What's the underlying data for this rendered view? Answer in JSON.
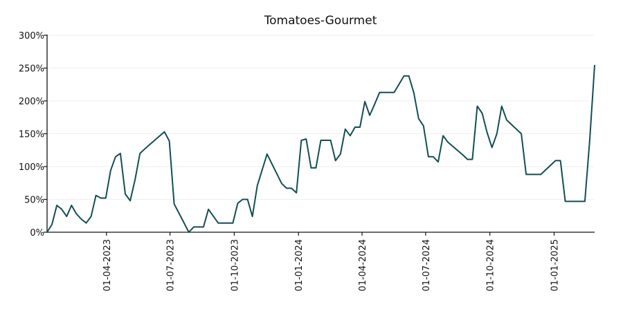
{
  "chart_data": {
    "type": "line",
    "title": "Tomatoes-Gourmet",
    "xlabel": "",
    "ylabel": "",
    "ylim": [
      0,
      300
    ],
    "xlim": [
      "2023-01-06",
      "2025-02-28"
    ],
    "y_ticks": [
      0,
      50,
      100,
      150,
      200,
      250,
      300
    ],
    "y_tick_labels": [
      "0%",
      "50%",
      "100%",
      "150%",
      "200%",
      "250%",
      "300%"
    ],
    "x_ticks": [
      "2023-04-01",
      "2023-07-01",
      "2023-10-01",
      "2024-01-01",
      "2024-04-01",
      "2024-07-01",
      "2024-10-01",
      "2025-01-01"
    ],
    "x_tick_labels": [
      "01-04-2023",
      "01-07-2023",
      "01-10-2023",
      "01-01-2024",
      "01-04-2024",
      "01-07-2024",
      "01-10-2024",
      "01-01-2025"
    ],
    "grid": "horizontal",
    "line_color": "#114e52",
    "series": [
      {
        "x": [
          "2023-01-06",
          "2023-01-13",
          "2023-01-20",
          "2023-01-27",
          "2023-02-03",
          "2023-02-10",
          "2023-02-17",
          "2023-02-24",
          "2023-03-03",
          "2023-03-10",
          "2023-03-17",
          "2023-03-24",
          "2023-03-31",
          "2023-04-07",
          "2023-04-14",
          "2023-04-21",
          "2023-04-28",
          "2023-05-05",
          "2023-05-12",
          "2023-05-19",
          "2023-05-26",
          "2023-06-23",
          "2023-06-30",
          "2023-07-07",
          "2023-07-28",
          "2023-08-04",
          "2023-08-18",
          "2023-08-25",
          "2023-09-08",
          "2023-09-29",
          "2023-10-06",
          "2023-10-13",
          "2023-10-20",
          "2023-10-27",
          "2023-11-03",
          "2023-11-17",
          "2023-12-08",
          "2023-12-15",
          "2023-12-22",
          "2023-12-29",
          "2024-01-05",
          "2024-01-12",
          "2024-01-19",
          "2024-01-26",
          "2024-02-02",
          "2024-02-16",
          "2024-02-23",
          "2024-03-01",
          "2024-03-08",
          "2024-03-15",
          "2024-03-22",
          "2024-03-29",
          "2024-04-05",
          "2024-04-12",
          "2024-04-19",
          "2024-04-26",
          "2024-05-17",
          "2024-05-31",
          "2024-06-07",
          "2024-06-14",
          "2024-06-21",
          "2024-06-28",
          "2024-07-05",
          "2024-07-12",
          "2024-07-19",
          "2024-07-26",
          "2024-08-02",
          "2024-08-23",
          "2024-08-30",
          "2024-09-06",
          "2024-09-13",
          "2024-09-20",
          "2024-09-27",
          "2024-10-04",
          "2024-10-11",
          "2024-10-18",
          "2024-10-25",
          "2024-11-15",
          "2024-11-22",
          "2024-12-13",
          "2025-01-03",
          "2025-01-10",
          "2025-01-17",
          "2025-02-14",
          "2025-02-21",
          "2025-02-28"
        ],
        "values": [
          0,
          12,
          41,
          35,
          24,
          41,
          28,
          20,
          14,
          24,
          56,
          52,
          52,
          94,
          115,
          120,
          58,
          48,
          80,
          120,
          127,
          153,
          139,
          43,
          0,
          8,
          8,
          35,
          14,
          14,
          44,
          50,
          50,
          24,
          71,
          119,
          74,
          67,
          67,
          60,
          140,
          142,
          98,
          98,
          140,
          140,
          109,
          119,
          157,
          147,
          160,
          160,
          199,
          178,
          195,
          213,
          213,
          238,
          238,
          213,
          173,
          162,
          115,
          115,
          107,
          147,
          137,
          118,
          111,
          111,
          192,
          181,
          152,
          129,
          150,
          192,
          171,
          150,
          88,
          88,
          109,
          109,
          47,
          47,
          140,
          254
        ]
      }
    ]
  }
}
